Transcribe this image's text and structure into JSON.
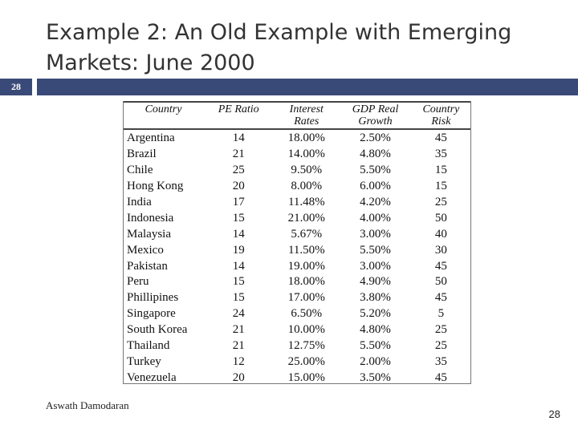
{
  "slide": {
    "title_line1": "Example 2: An Old Example with Emerging",
    "title_line2": "Markets: June 2000",
    "number_badge": "28",
    "footer_author": "Aswath Damodaran",
    "footer_page": "28"
  },
  "table": {
    "headers": {
      "country": "Country",
      "pe_ratio": "PE Ratio",
      "interest_rates_l1": "Interest",
      "interest_rates_l2": "Rates",
      "gdp_l1": "GDP Real",
      "gdp_l2": "Growth",
      "risk_l1": "Country",
      "risk_l2": "Risk"
    },
    "rows": [
      {
        "country": "Argentina",
        "pe": "14",
        "rate": "18.00%",
        "gdp": "2.50%",
        "risk": "45"
      },
      {
        "country": "Brazil",
        "pe": "21",
        "rate": "14.00%",
        "gdp": "4.80%",
        "risk": "35"
      },
      {
        "country": "Chile",
        "pe": "25",
        "rate": "9.50%",
        "gdp": "5.50%",
        "risk": "15"
      },
      {
        "country": "Hong Kong",
        "pe": "20",
        "rate": "8.00%",
        "gdp": "6.00%",
        "risk": "15"
      },
      {
        "country": "India",
        "pe": "17",
        "rate": "11.48%",
        "gdp": "4.20%",
        "risk": "25"
      },
      {
        "country": "Indonesia",
        "pe": "15",
        "rate": "21.00%",
        "gdp": "4.00%",
        "risk": "50"
      },
      {
        "country": "Malaysia",
        "pe": "14",
        "rate": "5.67%",
        "gdp": "3.00%",
        "risk": "40"
      },
      {
        "country": "Mexico",
        "pe": "19",
        "rate": "11.50%",
        "gdp": "5.50%",
        "risk": "30"
      },
      {
        "country": "Pakistan",
        "pe": "14",
        "rate": "19.00%",
        "gdp": "3.00%",
        "risk": "45"
      },
      {
        "country": "Peru",
        "pe": "15",
        "rate": "18.00%",
        "gdp": "4.90%",
        "risk": "50"
      },
      {
        "country": "Phillipines",
        "pe": "15",
        "rate": "17.00%",
        "gdp": "3.80%",
        "risk": "45"
      },
      {
        "country": "Singapore",
        "pe": "24",
        "rate": "6.50%",
        "gdp": "5.20%",
        "risk": "5"
      },
      {
        "country": "South Korea",
        "pe": "21",
        "rate": "10.00%",
        "gdp": "4.80%",
        "risk": "25"
      },
      {
        "country": "Thailand",
        "pe": "21",
        "rate": "12.75%",
        "gdp": "5.50%",
        "risk": "25"
      },
      {
        "country": "Turkey",
        "pe": "12",
        "rate": "25.00%",
        "gdp": "2.00%",
        "risk": "35"
      },
      {
        "country": "Venezuela",
        "pe": "20",
        "rate": "15.00%",
        "gdp": "3.50%",
        "risk": "45"
      }
    ]
  }
}
